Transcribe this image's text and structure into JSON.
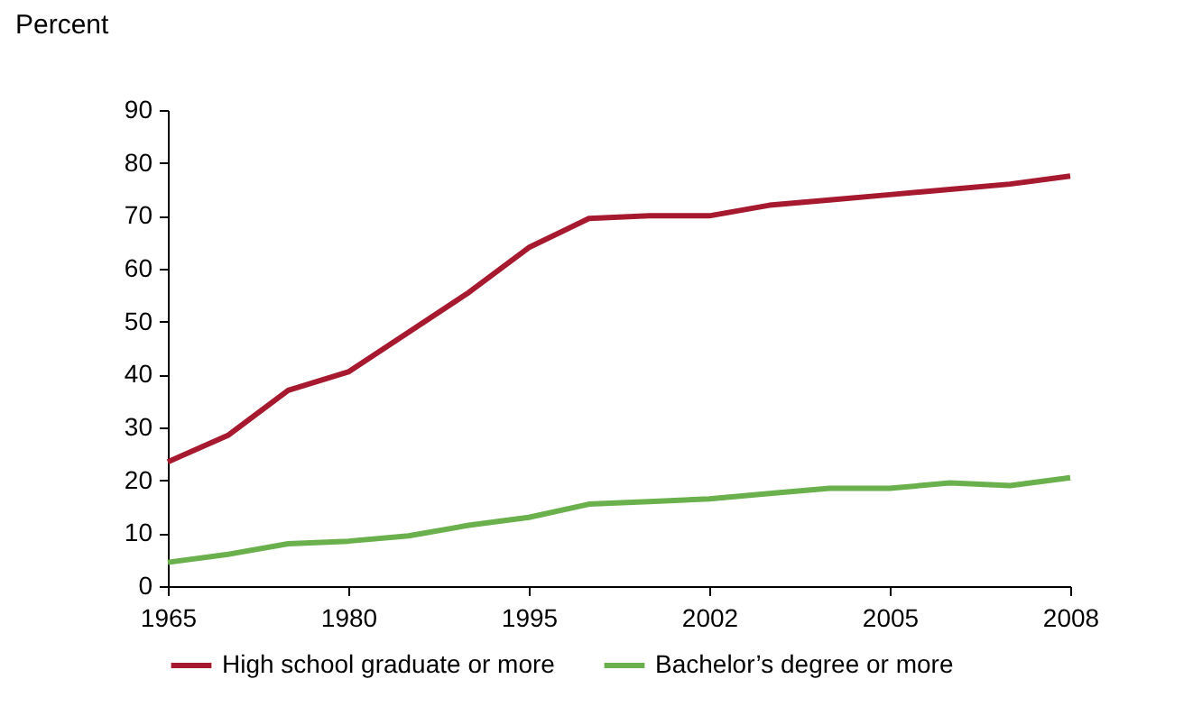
{
  "chart_data": {
    "type": "line",
    "ylabel": "Percent",
    "categories": [
      "1965",
      null,
      null,
      "1980",
      null,
      null,
      "1995",
      null,
      null,
      "2002",
      null,
      null,
      "2005",
      null,
      null,
      "2008"
    ],
    "series": [
      {
        "name": "High school graduate or more",
        "color": "#a6192e",
        "values": [
          23.5,
          28.5,
          37,
          40.5,
          48,
          55.5,
          64,
          69.5,
          70,
          70,
          72,
          73,
          74,
          75,
          76,
          77.5
        ]
      },
      {
        "name": "Bachelor’s degree or more",
        "color": "#6ab04c",
        "values": [
          4.5,
          6,
          8,
          8.5,
          9.5,
          11.5,
          13,
          15.5,
          16,
          16.5,
          17.5,
          18.5,
          18.5,
          19.5,
          19,
          20.5
        ]
      }
    ],
    "ylim": [
      0,
      90
    ],
    "yticks": [
      0,
      10,
      20,
      30,
      40,
      50,
      60,
      70,
      80,
      90
    ],
    "legend": "bottom",
    "marker": "none",
    "line_style": "solid"
  }
}
